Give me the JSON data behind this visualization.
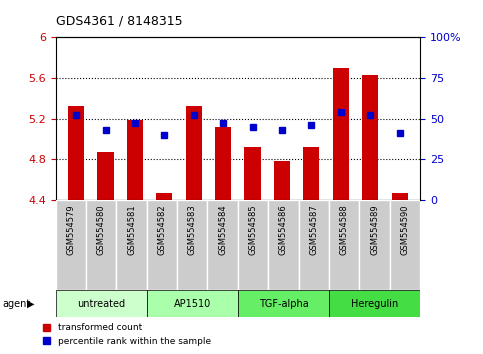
{
  "title": "GDS4361 / 8148315",
  "samples": [
    "GSM554579",
    "GSM554580",
    "GSM554581",
    "GSM554582",
    "GSM554583",
    "GSM554584",
    "GSM554585",
    "GSM554586",
    "GSM554587",
    "GSM554588",
    "GSM554589",
    "GSM554590"
  ],
  "bar_values": [
    5.32,
    4.87,
    5.19,
    4.47,
    5.32,
    5.12,
    4.92,
    4.78,
    4.92,
    5.7,
    5.63,
    4.47
  ],
  "percentile_values": [
    52,
    43,
    47,
    40,
    52,
    47,
    45,
    43,
    46,
    54,
    52,
    41
  ],
  "ylim_left": [
    4.4,
    6.0
  ],
  "ylim_right": [
    0,
    100
  ],
  "yticks_left": [
    4.4,
    4.8,
    5.2,
    5.6,
    6.0
  ],
  "ytick_labels_left": [
    "4.4",
    "4.8",
    "5.2",
    "5.6",
    "6"
  ],
  "ytick_labels_right": [
    "0",
    "25",
    "50",
    "75",
    "100%"
  ],
  "dotted_grid": [
    4.8,
    5.2,
    5.6
  ],
  "bar_color": "#cc0000",
  "dot_color": "#0000cc",
  "agent_groups": [
    {
      "label": "untreated",
      "start": 0,
      "end": 3,
      "color": "#ccffcc"
    },
    {
      "label": "AP1510",
      "start": 3,
      "end": 6,
      "color": "#aaffaa"
    },
    {
      "label": "TGF-alpha",
      "start": 6,
      "end": 9,
      "color": "#66ee66"
    },
    {
      "label": "Heregulin",
      "start": 9,
      "end": 12,
      "color": "#44dd44"
    }
  ],
  "left_axis_color": "#cc0000",
  "right_axis_color": "#0000cc",
  "bar_width": 0.55,
  "tick_bg_color": "#cccccc",
  "legend_items": [
    {
      "label": "transformed count",
      "color": "#cc0000"
    },
    {
      "label": "percentile rank within the sample",
      "color": "#0000cc"
    }
  ]
}
